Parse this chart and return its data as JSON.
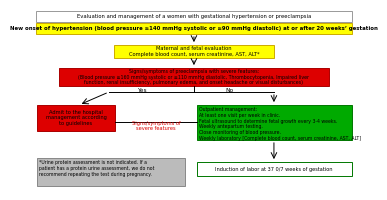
{
  "title": "Evaluation and management of a women with gestational hypertension or preeclampsia",
  "box1_text": "New onset of hypertension (blood pressure ≥140 mmHg systolic or ≥90 mmHg diastolic) at or after 20 weeks’ gestation",
  "box2_text": "Maternal and fetal evaluation\nComplete blood count, serum creatinine, AST, ALT*",
  "box3_text": "Signs/symptoms of preeclampsia with severe features:\n(Blood pressure ≥160 mmHg systolic or ≥110 mmHg diastolic, Thrombocytopenia, Impaired liver\nfunction, renal insufficiency, pulmonary edema, and onset headache or visual disturbances)",
  "yes_label": "Yes",
  "no_label": "No",
  "box_left_text": "Admit to the hospital\nmanagement according\nto guidelines",
  "box_middle_text": "Signs/symptoms of\nsevere features",
  "box_right_text": "Outpatient management:\nAt least one visit per week in clinic.\nFetal ultrasound to determine fetal growth every 3-4 weeks.\nWeekly antepartum testing.\nClose monitoring of blood pressure.\nWeekly laboratory [Complete blood count, serum creatinine, AST, ALT]",
  "box_bot_left_text": "*Urine protein assessment is not indicated. If a\npatient has a protein urine assessment, we do not\nrecommend repeating the test during pregnancy.",
  "box_bot_right_text": "Induction of labor at 37 0/7 weeks of gestation",
  "col_yellow": "#ffff00",
  "col_yellow_edge": "#ccaa00",
  "col_red": "#dd0000",
  "col_red_edge": "#aa0000",
  "col_green": "#00aa00",
  "col_green_edge": "#007700",
  "col_gray": "#bbbbbb",
  "col_gray_edge": "#888888",
  "col_white": "#ffffff",
  "col_black": "#000000",
  "col_title_edge": "#999999"
}
